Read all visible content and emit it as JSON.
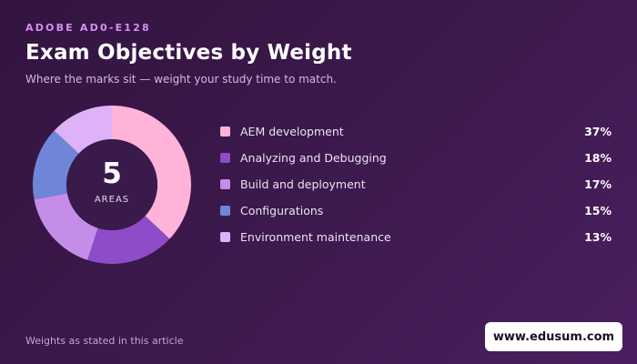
{
  "header": {
    "eyebrow": "ADOBE AD0-E128",
    "title": "Exam Objectives by Weight",
    "subtitle": "Where the marks sit — weight your study time to match."
  },
  "center": {
    "count": "5",
    "label": "AREAS"
  },
  "footer": {
    "note": "Weights as stated in this article",
    "badge": "www.edusum.com"
  },
  "chart_data": {
    "type": "pie",
    "donut": true,
    "title": "Exam Objectives by Weight",
    "legend_placement": "right",
    "series": [
      {
        "label": "AEM development",
        "value": 37,
        "display": "37%",
        "color": "#ffb3d9"
      },
      {
        "label": "Analyzing and Debugging",
        "value": 18,
        "display": "18%",
        "color": "#8e4cc8"
      },
      {
        "label": "Build and deployment",
        "value": 17,
        "display": "17%",
        "color": "#c48ee8"
      },
      {
        "label": "Configurations",
        "value": 15,
        "display": "15%",
        "color": "#6f86d8"
      },
      {
        "label": "Environment maintenance",
        "value": 13,
        "display": "13%",
        "color": "#ddb2f6"
      }
    ]
  }
}
